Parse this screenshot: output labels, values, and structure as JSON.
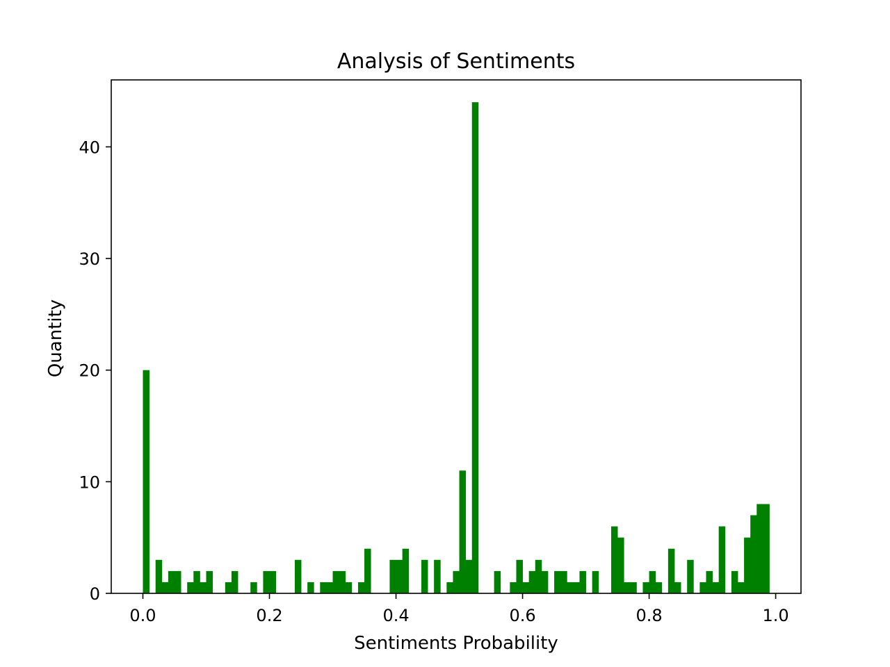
{
  "chart_data": {
    "type": "bar",
    "title": "Analysis of Sentiments",
    "xlabel": "Sentiments Probability",
    "ylabel": "Quantity",
    "xlim": [
      -0.05,
      1.04
    ],
    "ylim": [
      0,
      46
    ],
    "xticks": [
      "0.0",
      "0.2",
      "0.4",
      "0.6",
      "0.8",
      "1.0"
    ],
    "yticks": [
      "0",
      "10",
      "20",
      "30",
      "40"
    ],
    "grid": false,
    "bar_color": "#008000",
    "bin_width": 0.01,
    "series": [
      {
        "x": [
          0.0,
          0.02,
          0.03,
          0.04,
          0.05,
          0.07,
          0.08,
          0.09,
          0.1,
          0.13,
          0.14,
          0.17,
          0.19,
          0.2,
          0.24,
          0.26,
          0.28,
          0.29,
          0.3,
          0.31,
          0.32,
          0.34,
          0.35,
          0.39,
          0.4,
          0.41,
          0.44,
          0.46,
          0.48,
          0.49,
          0.5,
          0.51,
          0.52,
          0.555,
          0.58,
          0.59,
          0.6,
          0.61,
          0.62,
          0.63,
          0.65,
          0.66,
          0.67,
          0.68,
          0.69,
          0.71,
          0.74,
          0.75,
          0.76,
          0.77,
          0.79,
          0.8,
          0.81,
          0.83,
          0.84,
          0.86,
          0.88,
          0.89,
          0.9,
          0.91,
          0.93,
          0.94,
          0.95,
          0.96,
          0.97,
          0.98
        ],
        "values": [
          20,
          3,
          1,
          2,
          2,
          1,
          2,
          1,
          2,
          1,
          2,
          1,
          2,
          2,
          3,
          1,
          1,
          1,
          2,
          2,
          1,
          1,
          4,
          3,
          3,
          4,
          3,
          3,
          1,
          2,
          11,
          3,
          44,
          2,
          1,
          3,
          1,
          2,
          3,
          2,
          2,
          2,
          1,
          1,
          2,
          2,
          6,
          5,
          1,
          1,
          1,
          2,
          1,
          4,
          1,
          3,
          1,
          2,
          1,
          6,
          2,
          1,
          5,
          7,
          8,
          8
        ]
      }
    ]
  }
}
